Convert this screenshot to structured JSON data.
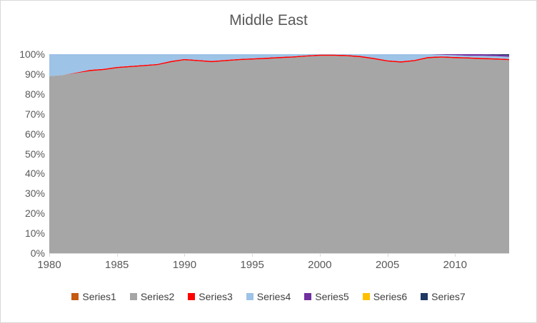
{
  "title": "Middle East",
  "colors": {
    "title_text": "#595959",
    "axis_text": "#595959",
    "legend_text": "#404040",
    "frame_border": "#d9d9d9",
    "axis_line": "#d9d9d9"
  },
  "chart_data": {
    "type": "area",
    "variant": "100%-stacked",
    "title": "Middle East",
    "xlabel": "",
    "ylabel": "",
    "ylim": [
      0,
      100
    ],
    "grid": false,
    "legend_position": "bottom",
    "x": [
      1980,
      1981,
      1982,
      1983,
      1984,
      1985,
      1986,
      1987,
      1988,
      1989,
      1990,
      1991,
      1992,
      1993,
      1994,
      1995,
      1996,
      1997,
      1998,
      1999,
      2000,
      2001,
      2002,
      2003,
      2004,
      2005,
      2006,
      2007,
      2008,
      2009,
      2010,
      2011,
      2012,
      2013,
      2014
    ],
    "x_tick_labels": [
      "1980",
      "1985",
      "1990",
      "1995",
      "2000",
      "2005",
      "2010"
    ],
    "y_tick_labels": [
      "0%",
      "10%",
      "20%",
      "30%",
      "40%",
      "50%",
      "60%",
      "70%",
      "80%",
      "90%",
      "100%"
    ],
    "series": [
      {
        "name": "Series1",
        "color": "#C55A11",
        "values": [
          0,
          0,
          0,
          0,
          0,
          0,
          0,
          0,
          0,
          0,
          0,
          0,
          0,
          0,
          0,
          0,
          0,
          0,
          0,
          0,
          0,
          0,
          0,
          0,
          0,
          0,
          0,
          0,
          0,
          0,
          0,
          0,
          0,
          0,
          0
        ]
      },
      {
        "name": "Series2",
        "color": "#A6A6A6",
        "values": [
          89,
          89.5,
          90.5,
          91.5,
          92,
          93,
          93.5,
          94,
          94.5,
          96,
          97,
          96.5,
          96,
          96.5,
          97,
          97.3,
          97.6,
          98,
          98.3,
          98.8,
          99.2,
          99.2,
          99,
          98.5,
          97.5,
          96.3,
          95.8,
          96.5,
          98,
          98.3,
          98,
          97.8,
          97.5,
          97.3,
          97
        ]
      },
      {
        "name": "Series3",
        "color": "#FF0000",
        "values": [
          0,
          0,
          0.3,
          0.6,
          0.6,
          0.6,
          0.6,
          0.6,
          0.6,
          0.6,
          0.6,
          0.6,
          0.6,
          0.6,
          0.6,
          0.6,
          0.6,
          0.6,
          0.6,
          0.6,
          0.6,
          0.6,
          0.6,
          0.6,
          0.6,
          0.6,
          0.6,
          0.6,
          0.6,
          0.6,
          0.6,
          0.6,
          0.6,
          0.6,
          0.6
        ]
      },
      {
        "name": "Series4",
        "color": "#9DC3E6",
        "values": [
          11,
          10.5,
          9.2,
          7.9,
          7.4,
          6.4,
          5.9,
          5.4,
          4.9,
          3.4,
          2.4,
          2.9,
          3.4,
          2.9,
          2.4,
          2.1,
          1.8,
          1.4,
          1.1,
          0.6,
          0.2,
          0.2,
          0.4,
          0.9,
          1.9,
          3.1,
          3.6,
          2.9,
          1.4,
          0.8,
          0.9,
          0.8,
          1.1,
          1.1,
          1.1
        ]
      },
      {
        "name": "Series5",
        "color": "#7030A0",
        "values": [
          0,
          0,
          0,
          0,
          0,
          0,
          0,
          0,
          0,
          0,
          0,
          0,
          0,
          0,
          0,
          0,
          0,
          0,
          0,
          0,
          0,
          0,
          0,
          0,
          0,
          0,
          0,
          0,
          0,
          0.3,
          0.5,
          0.8,
          0.8,
          0.8,
          0.8
        ]
      },
      {
        "name": "Series6",
        "color": "#FFC000",
        "values": [
          0,
          0,
          0,
          0,
          0,
          0,
          0,
          0,
          0,
          0,
          0,
          0,
          0,
          0,
          0,
          0,
          0,
          0,
          0,
          0,
          0,
          0,
          0,
          0,
          0,
          0,
          0,
          0,
          0,
          0,
          0,
          0,
          0,
          0,
          0
        ]
      },
      {
        "name": "Series7",
        "color": "#1F3864",
        "values": [
          0,
          0,
          0,
          0,
          0,
          0,
          0,
          0,
          0,
          0,
          0,
          0,
          0,
          0,
          0,
          0,
          0,
          0,
          0,
          0,
          0,
          0,
          0,
          0,
          0,
          0,
          0,
          0,
          0,
          0,
          0,
          0,
          0,
          0.2,
          0.5
        ]
      }
    ]
  }
}
